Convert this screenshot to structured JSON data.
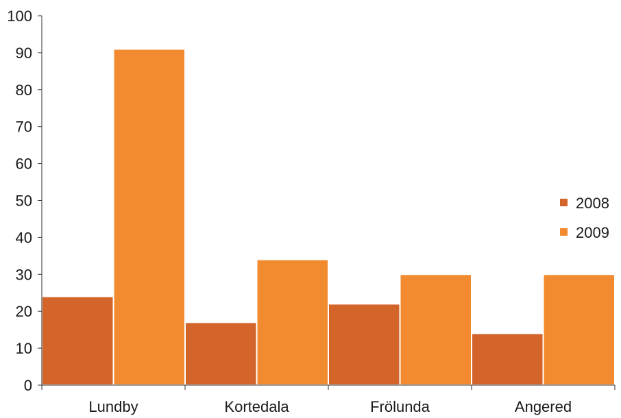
{
  "chart_data": {
    "type": "bar",
    "categories": [
      "Lundby",
      "Kortedala",
      "Frölunda",
      "Angered"
    ],
    "series": [
      {
        "name": "2008",
        "values": [
          24,
          17,
          22,
          14
        ],
        "color": "#d4652a"
      },
      {
        "name": "2009",
        "values": [
          91,
          34,
          30,
          30
        ],
        "color": "#f28b30"
      }
    ],
    "ylim": [
      0,
      100
    ],
    "yticks": [
      "0",
      "10",
      "20",
      "30",
      "40",
      "50",
      "60",
      "70",
      "80",
      "90",
      "100"
    ],
    "grid": false,
    "legend_position": "right"
  }
}
